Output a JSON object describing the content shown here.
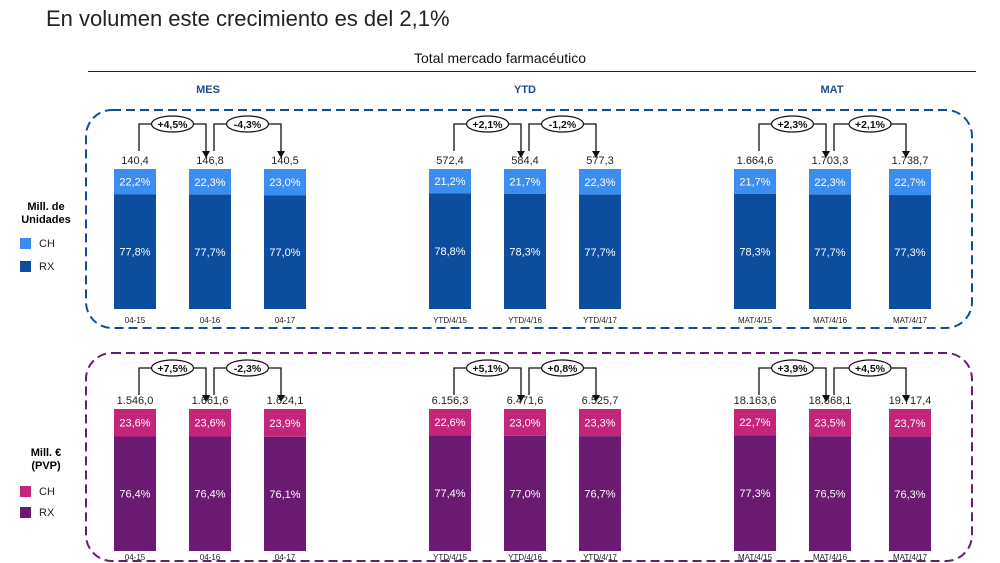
{
  "headline": "En volumen este crecimiento es del 2,1%",
  "subtitle": "Total mercado farmacéutico",
  "panels": [
    {
      "label_lines": [
        "Mill. de",
        "Unidades"
      ],
      "label_color": "#1f4e8c",
      "legend": [
        {
          "name": "CH",
          "color": "#3b8ef0"
        },
        {
          "name": "RX",
          "color": "#0d4d9e"
        }
      ]
    },
    {
      "label_lines": [
        "Mill. €",
        "(PVP)"
      ],
      "label_color": "#6b1e6e",
      "legend": [
        {
          "name": "CH",
          "color": "#c2257a"
        },
        {
          "name": "RX",
          "color": "#6a1a70"
        }
      ]
    }
  ],
  "chart_data": {
    "type": "bar",
    "stacked": true,
    "groups": [
      "MES",
      "YTD",
      "MAT"
    ],
    "group_color": "#1f4e8c",
    "panels": [
      {
        "unit": "Mill. de Unidades",
        "groups": [
          {
            "name": "MES",
            "categories": [
              "04-15",
              "04-16",
              "04-17"
            ],
            "totals": [
              "140,4",
              "146,8",
              "140,5"
            ],
            "rx_pct": [
              77.8,
              77.7,
              77.0
            ],
            "ch_pct": [
              22.2,
              22.3,
              23.0
            ],
            "rx_labels": [
              "77,8%",
              "77,7%",
              "77,0%"
            ],
            "ch_labels": [
              "22,2%",
              "22,3%",
              "23,0%"
            ],
            "growth": [
              "+4,5%",
              "-4,3%"
            ]
          },
          {
            "name": "YTD",
            "categories": [
              "YTD/4/15",
              "YTD/4/16",
              "YTD/4/17"
            ],
            "totals": [
              "572,4",
              "584,4",
              "577,3"
            ],
            "rx_pct": [
              78.8,
              78.3,
              77.7
            ],
            "ch_pct": [
              21.2,
              21.7,
              22.3
            ],
            "rx_labels": [
              "78,8%",
              "78,3%",
              "77,7%"
            ],
            "ch_labels": [
              "21,2%",
              "21,7%",
              "22,3%"
            ],
            "growth": [
              "+2,1%",
              "-1,2%"
            ]
          },
          {
            "name": "MAT",
            "categories": [
              "MAT/4/15",
              "MAT/4/16",
              "MAT/4/17"
            ],
            "totals": [
              "1.664,6",
              "1.703,3",
              "1.738,7"
            ],
            "rx_pct": [
              78.3,
              77.7,
              77.3
            ],
            "ch_pct": [
              21.7,
              22.3,
              22.7
            ],
            "rx_labels": [
              "78,3%",
              "77,7%",
              "77,3%"
            ],
            "ch_labels": [
              "21,7%",
              "22,3%",
              "22,7%"
            ],
            "growth": [
              "+2,3%",
              "+2,1%"
            ]
          }
        ]
      },
      {
        "unit": "Mill. € (PVP)",
        "groups": [
          {
            "name": "MES",
            "categories": [
              "04-15",
              "04-16",
              "04-17"
            ],
            "totals": [
              "1.546,0",
              "1.661,6",
              "1.624,1"
            ],
            "rx_pct": [
              76.4,
              76.4,
              76.1
            ],
            "ch_pct": [
              23.6,
              23.6,
              23.9
            ],
            "rx_labels": [
              "76,4%",
              "76,4%",
              "76,1%"
            ],
            "ch_labels": [
              "23,6%",
              "23,6%",
              "23,9%"
            ],
            "growth": [
              "+7,5%",
              "-2,3%"
            ]
          },
          {
            "name": "YTD",
            "categories": [
              "YTD/4/15",
              "YTD/4/16",
              "YTD/4/17"
            ],
            "totals": [
              "6.156,3",
              "6.471,6",
              "6.525,7"
            ],
            "rx_pct": [
              77.4,
              77.0,
              76.7
            ],
            "ch_pct": [
              22.6,
              23.0,
              23.3
            ],
            "rx_labels": [
              "77,4%",
              "77,0%",
              "76,7%"
            ],
            "ch_labels": [
              "22,6%",
              "23,0%",
              "23,3%"
            ],
            "growth": [
              "+5,1%",
              "+0,8%"
            ]
          },
          {
            "name": "MAT",
            "categories": [
              "MAT/4/15",
              "MAT/4/16",
              "MAT/4/17"
            ],
            "totals": [
              "18.163,6",
              "18.868,1",
              "19.717,4"
            ],
            "rx_pct": [
              77.3,
              76.5,
              76.3
            ],
            "ch_pct": [
              22.7,
              23.5,
              23.7
            ],
            "rx_labels": [
              "77,3%",
              "76,5%",
              "76,3%"
            ],
            "ch_labels": [
              "22,7%",
              "23,5%",
              "23,7%"
            ],
            "growth": [
              "+3,9%",
              "+4,5%"
            ]
          }
        ]
      }
    ]
  }
}
